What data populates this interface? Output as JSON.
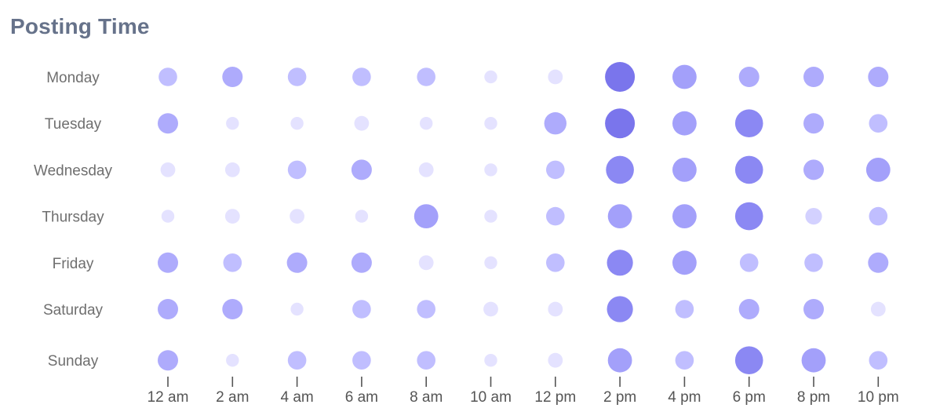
{
  "header": {
    "title": "Posting Time"
  },
  "colors": {
    "scale": [
      "#eceaff",
      "#e4e2ff",
      "#d3d1ff",
      "#c0beff",
      "#aeabfc",
      "#a3a0fa",
      "#8b88f3",
      "#7a75ec"
    ],
    "title": "#66728a",
    "label": "#6f6f6f"
  },
  "chart_data": {
    "type": "bubble-heatmap",
    "title": "Posting Time",
    "xlabel": "",
    "ylabel": "",
    "x_categories": [
      "12 am",
      "2 am",
      "4 am",
      "6 am",
      "8 am",
      "10 am",
      "12 pm",
      "2 pm",
      "4 pm",
      "6 pm",
      "8 pm",
      "10 pm"
    ],
    "y_categories": [
      "Monday",
      "Tuesday",
      "Wednesday",
      "Thursday",
      "Friday",
      "Saturday",
      "Sunday"
    ],
    "value_range": [
      0,
      10
    ],
    "values": [
      [
        4,
        5,
        4,
        4,
        4,
        1,
        2,
        10,
        7,
        5,
        5,
        5
      ],
      [
        5,
        1,
        1,
        2,
        1,
        1,
        6,
        10,
        7,
        9,
        5,
        4
      ],
      [
        2,
        2,
        4,
        5,
        2,
        1,
        4,
        9,
        7,
        9,
        5,
        7
      ],
      [
        1,
        2,
        2,
        1,
        7,
        1,
        4,
        7,
        7,
        9,
        3,
        4
      ],
      [
        5,
        4,
        5,
        5,
        2,
        1,
        4,
        8,
        7,
        4,
        4,
        5
      ],
      [
        5,
        5,
        1,
        4,
        4,
        2,
        2,
        8,
        4,
        5,
        5,
        2
      ],
      [
        5,
        1,
        4,
        4,
        4,
        1,
        2,
        7,
        4,
        9,
        7,
        4
      ]
    ]
  }
}
